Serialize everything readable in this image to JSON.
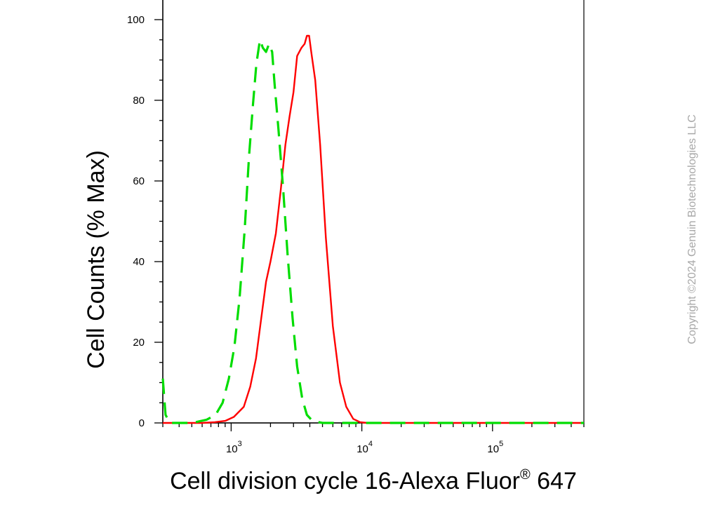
{
  "chart_data": {
    "type": "line",
    "xlabel_main": "Cell division cycle 16-Alexa Fluor",
    "xlabel_sup": "®",
    "xlabel_tail": " 647",
    "ylabel": "Cell Counts (% Max)",
    "x_scale": "log",
    "xlim": [
      300,
      500000
    ],
    "ylim": [
      0,
      100
    ],
    "y_ticks": [
      0,
      20,
      40,
      60,
      80,
      100
    ],
    "x_ticks": [
      {
        "base": "10",
        "exp": "3",
        "value": 1000
      },
      {
        "base": "10",
        "exp": "4",
        "value": 10000
      },
      {
        "base": "10",
        "exp": "5",
        "value": 100000
      }
    ],
    "grid": false,
    "series": [
      {
        "color": "#ff0000",
        "style": "solid",
        "points": [
          [
            300,
            0
          ],
          [
            600,
            0
          ],
          [
            750,
            0.2
          ],
          [
            900,
            0.5
          ],
          [
            1050,
            1.5
          ],
          [
            1250,
            4
          ],
          [
            1400,
            9
          ],
          [
            1550,
            16
          ],
          [
            1700,
            26
          ],
          [
            1850,
            35
          ],
          [
            2000,
            40
          ],
          [
            2200,
            47
          ],
          [
            2400,
            58
          ],
          [
            2600,
            69
          ],
          [
            2800,
            76
          ],
          [
            3000,
            82
          ],
          [
            3200,
            91
          ],
          [
            3450,
            93
          ],
          [
            3650,
            94
          ],
          [
            3800,
            96
          ],
          [
            3950,
            96
          ],
          [
            4100,
            92
          ],
          [
            4400,
            85
          ],
          [
            4800,
            69
          ],
          [
            5300,
            46
          ],
          [
            6000,
            24
          ],
          [
            6800,
            10
          ],
          [
            7600,
            4
          ],
          [
            8600,
            1
          ],
          [
            9700,
            0.2
          ],
          [
            11000,
            0
          ],
          [
            500000,
            0
          ]
        ]
      },
      {
        "color": "#00dd00",
        "style": "dashed",
        "points": [
          [
            300,
            11
          ],
          [
            315,
            2
          ],
          [
            340,
            0
          ],
          [
            500,
            0
          ],
          [
            650,
            0.8
          ],
          [
            760,
            2
          ],
          [
            860,
            5
          ],
          [
            960,
            11
          ],
          [
            1060,
            19
          ],
          [
            1160,
            31
          ],
          [
            1270,
            48
          ],
          [
            1370,
            66
          ],
          [
            1470,
            79
          ],
          [
            1560,
            89
          ],
          [
            1660,
            95
          ],
          [
            1750,
            93
          ],
          [
            1850,
            92
          ],
          [
            1950,
            94
          ],
          [
            2060,
            92
          ],
          [
            2150,
            84
          ],
          [
            2300,
            73
          ],
          [
            2500,
            58
          ],
          [
            2700,
            42
          ],
          [
            2950,
            26
          ],
          [
            3200,
            14
          ],
          [
            3500,
            6
          ],
          [
            3800,
            2
          ],
          [
            4200,
            0.5
          ],
          [
            5000,
            0
          ],
          [
            500000,
            0
          ]
        ]
      }
    ],
    "copyright": "Copyright ©2024 Genuin Biotechnologies LLC"
  }
}
